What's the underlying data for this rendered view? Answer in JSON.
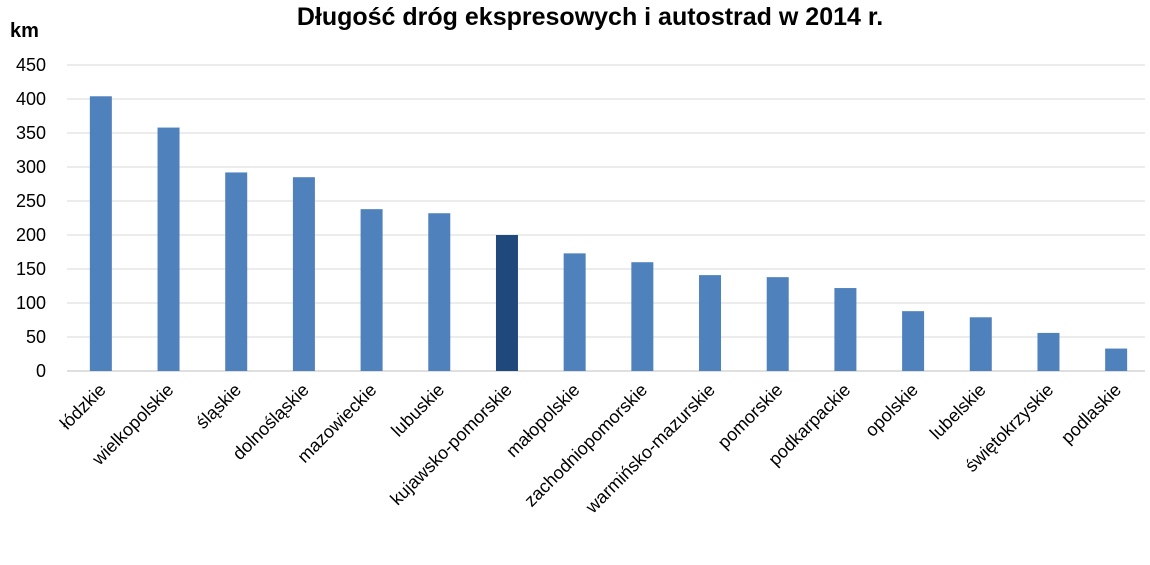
{
  "chart_data": {
    "type": "bar",
    "title": "Długość dróg ekspresowych i autostrad w 2014 r.",
    "ylabel": "km",
    "xlabel": "",
    "ylim": [
      0,
      450
    ],
    "yticks": [
      0,
      50,
      100,
      150,
      200,
      250,
      300,
      350,
      400,
      450
    ],
    "grid": true,
    "categories": [
      "łódzkie",
      "wielkopolskie",
      "śląskie",
      "dolnośląskie",
      "mazowieckie",
      "lubuskie",
      "kujawsko-pomorskie",
      "małopolskie",
      "zachodniopomorskie",
      "warmińsko-mazurskie",
      "pomorskie",
      "podkarpackie",
      "opolskie",
      "lubelskie",
      "świętokrzyskie",
      "podlaskie"
    ],
    "values": [
      404,
      358,
      292,
      285,
      238,
      232,
      200,
      173,
      160,
      141,
      138,
      122,
      88,
      79,
      56,
      33
    ],
    "colors": {
      "bar": "#4f81bd",
      "highlight": "#1f497d"
    },
    "highlight_category": "kujawsko-pomorskie"
  }
}
